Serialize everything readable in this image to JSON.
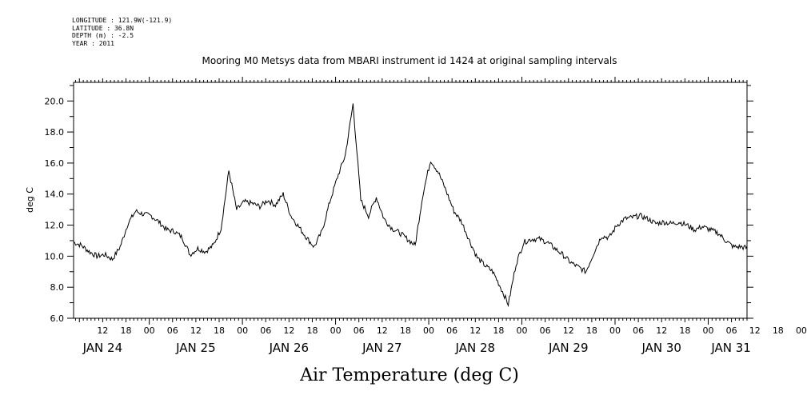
{
  "header": {
    "longitude": "LONGITUDE : 121.9W(-121.9)",
    "latitude": "LATITUDE : 36.8N",
    "depth": "DEPTH (m) : -2.5",
    "year": "YEAR : 2011"
  },
  "chart_data": {
    "type": "line",
    "title": "Mooring M0 Metsys data from MBARI instrument id 1424 at original sampling intervals",
    "ylabel": "deg C",
    "xlabel": "Air Temperature (deg C)",
    "ylim": [
      6.0,
      21.2
    ],
    "yticks": [
      "6.0",
      "8.0",
      "10.0",
      "12.0",
      "14.0",
      "16.0",
      "18.0",
      "20.0"
    ],
    "xlim_hours": [
      4.5,
      178
    ],
    "hour_tick_labels": [
      "12",
      "18",
      "00",
      "06",
      "12",
      "18",
      "00",
      "06",
      "12",
      "18",
      "00",
      "06",
      "12",
      "18",
      "00",
      "06",
      "12",
      "18",
      "00",
      "06",
      "12",
      "18",
      "00",
      "06",
      "12",
      "18",
      "00",
      "06",
      "12",
      "18",
      "00",
      "06"
    ],
    "day_labels": [
      "JAN 24",
      "JAN 25",
      "JAN 26",
      "JAN 27",
      "JAN 28",
      "JAN 29",
      "JAN 30",
      "JAN 31"
    ],
    "grid": false,
    "series": [
      {
        "x": [
          0,
          2,
          4,
          6,
          8,
          10,
          12,
          14,
          16,
          18,
          20,
          22,
          24,
          26,
          28,
          30,
          32,
          34,
          36,
          38,
          40,
          42,
          44,
          46,
          48,
          50,
          52,
          54,
          56,
          58,
          60,
          62,
          64,
          66,
          68,
          70,
          72,
          74,
          76,
          78,
          80,
          82,
          84,
          86,
          88,
          90,
          92,
          94,
          96,
          98,
          100,
          102,
          104,
          106,
          108,
          110,
          112,
          114,
          116,
          118,
          120,
          122,
          124,
          126,
          128,
          130,
          132,
          134,
          136,
          138,
          140,
          142,
          144,
          146,
          148,
          150,
          152,
          154,
          156,
          158,
          160,
          162,
          164,
          166,
          168,
          170,
          172,
          174,
          176,
          178,
          180,
          182,
          184,
          186
        ],
        "values": [
          10.9,
          10.7,
          10.3,
          10.0,
          10.1,
          9.8,
          10.6,
          12.1,
          12.9,
          12.7,
          12.6,
          12.2,
          11.7,
          11.6,
          11.2,
          10.1,
          10.5,
          10.3,
          10.7,
          11.8,
          15.5,
          13.0,
          13.5,
          13.4,
          13.2,
          13.6,
          13.3,
          14.0,
          12.6,
          11.9,
          11.2,
          10.6,
          11.6,
          13.5,
          15.1,
          16.5,
          19.8,
          13.6,
          12.6,
          13.8,
          12.4,
          11.8,
          11.5,
          11.1,
          10.7,
          14.0,
          16.2,
          15.4,
          14.2,
          12.9,
          12.2,
          11.0,
          9.9,
          9.4,
          9.0,
          8.0,
          6.9,
          9.5,
          10.9,
          11.1,
          11.1,
          10.9,
          10.5,
          10.1,
          9.6,
          9.3,
          9.0,
          10.2,
          11.3,
          11.2,
          12.0,
          12.4,
          12.5,
          12.6,
          12.4,
          12.1,
          12.2,
          12.1,
          12.2,
          12.0,
          11.7,
          11.9,
          11.7,
          11.5,
          11.0,
          10.6,
          10.6,
          10.5,
          10.5,
          10.5,
          10.5,
          10.5,
          10.5,
          10.5
        ]
      }
    ]
  }
}
